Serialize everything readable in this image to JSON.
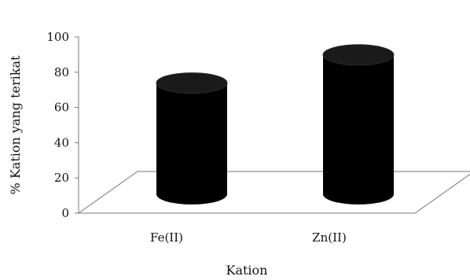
{
  "chart_data": {
    "type": "bar",
    "style": "3d-cylinder",
    "categories": [
      "Fe(II)",
      "Zn(II)"
    ],
    "values": [
      79,
      99
    ],
    "xlabel": "Kation",
    "ylabel": "% Kation yang terikat",
    "ylim": [
      0,
      100
    ],
    "yticks": [
      0,
      20,
      40,
      60,
      80,
      100
    ],
    "grid": false,
    "legend": "none",
    "colors": {
      "bar": "#000000",
      "floor": "#777777",
      "axis": "#777777"
    }
  }
}
